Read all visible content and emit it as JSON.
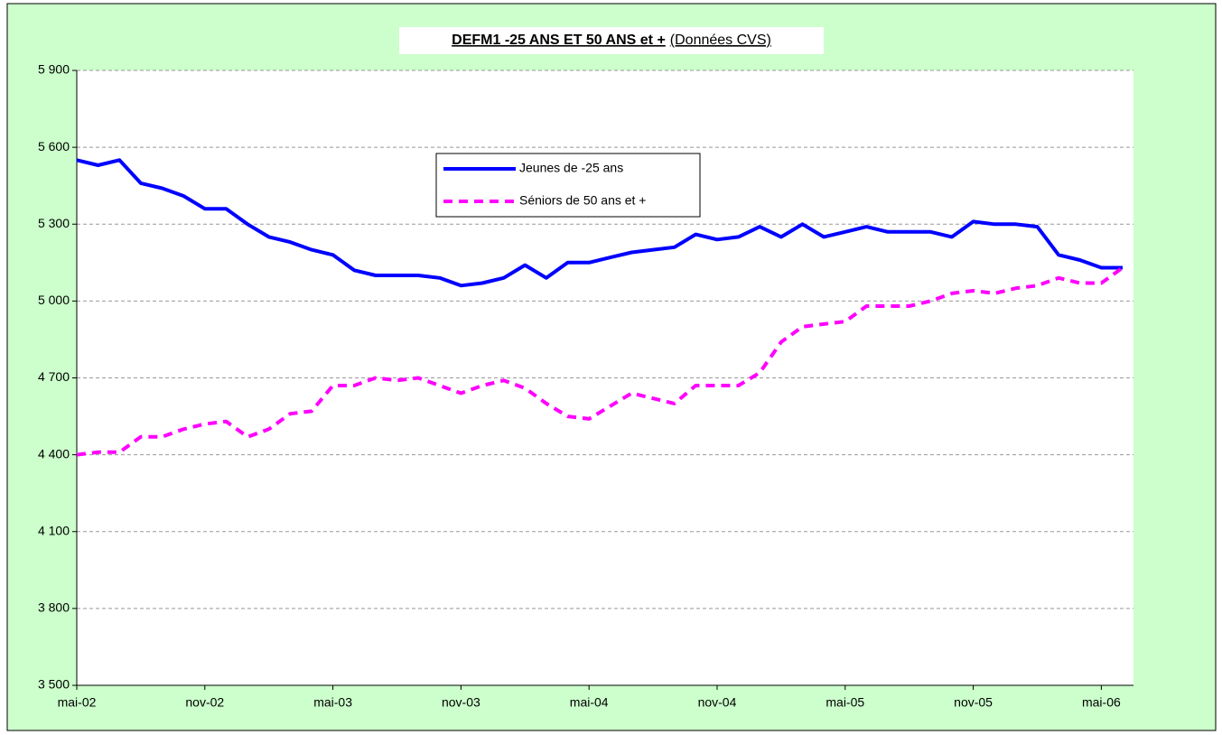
{
  "chart_data": {
    "type": "line",
    "title": "DEFM1 -25 ANS ET 50 ANS et +",
    "title_note": "(Données CVS)",
    "categories": [
      "mai-02",
      null,
      null,
      null,
      null,
      null,
      "nov-02",
      null,
      null,
      null,
      null,
      null,
      "mai-03",
      null,
      null,
      null,
      null,
      null,
      "nov-03",
      null,
      null,
      null,
      null,
      null,
      "mai-04",
      null,
      null,
      null,
      null,
      null,
      "nov-04",
      null,
      null,
      null,
      null,
      null,
      "mai-05",
      null,
      null,
      null,
      null,
      null,
      "nov-05",
      null,
      null,
      null,
      null,
      null,
      "mai-06",
      null
    ],
    "series": [
      {
        "name": "Jeunes de -25 ans",
        "color": "#0000ff",
        "dashed": false,
        "values": [
          5550,
          5530,
          5550,
          5460,
          5440,
          5410,
          5360,
          5360,
          5300,
          5250,
          5230,
          5200,
          5180,
          5120,
          5100,
          5100,
          5100,
          5090,
          5060,
          5070,
          5090,
          5140,
          5090,
          5150,
          5150,
          5170,
          5190,
          5200,
          5210,
          5260,
          5240,
          5250,
          5290,
          5250,
          5300,
          5250,
          5270,
          5290,
          5270,
          5270,
          5270,
          5250,
          5310,
          5300,
          5300,
          5290,
          5180,
          5160,
          5130,
          5130
        ]
      },
      {
        "name": "Séniors de 50 ans et +",
        "color": "#ff00ff",
        "dashed": true,
        "values": [
          4400,
          4410,
          4410,
          4470,
          4470,
          4500,
          4520,
          4530,
          4470,
          4500,
          4560,
          4570,
          4670,
          4670,
          4700,
          4690,
          4700,
          4670,
          4640,
          4670,
          4690,
          4660,
          4600,
          4550,
          4540,
          4590,
          4640,
          4620,
          4600,
          4670,
          4670,
          4670,
          4720,
          4840,
          4900,
          4910,
          4920,
          4980,
          4980,
          4980,
          5000,
          5030,
          5040,
          5030,
          5050,
          5060,
          5090,
          5070,
          5070,
          5130
        ]
      }
    ],
    "ylim": [
      3500,
      5900
    ],
    "yticks": [
      {
        "value": 3500,
        "label": "3 500"
      },
      {
        "value": 3800,
        "label": "3 800"
      },
      {
        "value": 4100,
        "label": "4 100"
      },
      {
        "value": 4400,
        "label": "4 400"
      },
      {
        "value": 4700,
        "label": "4 700"
      },
      {
        "value": 5000,
        "label": "5 000"
      },
      {
        "value": 5300,
        "label": "5 300"
      },
      {
        "value": 5600,
        "label": "5 600"
      },
      {
        "value": 5900,
        "label": "5 900"
      }
    ],
    "grid": true,
    "legend": "upper center"
  }
}
